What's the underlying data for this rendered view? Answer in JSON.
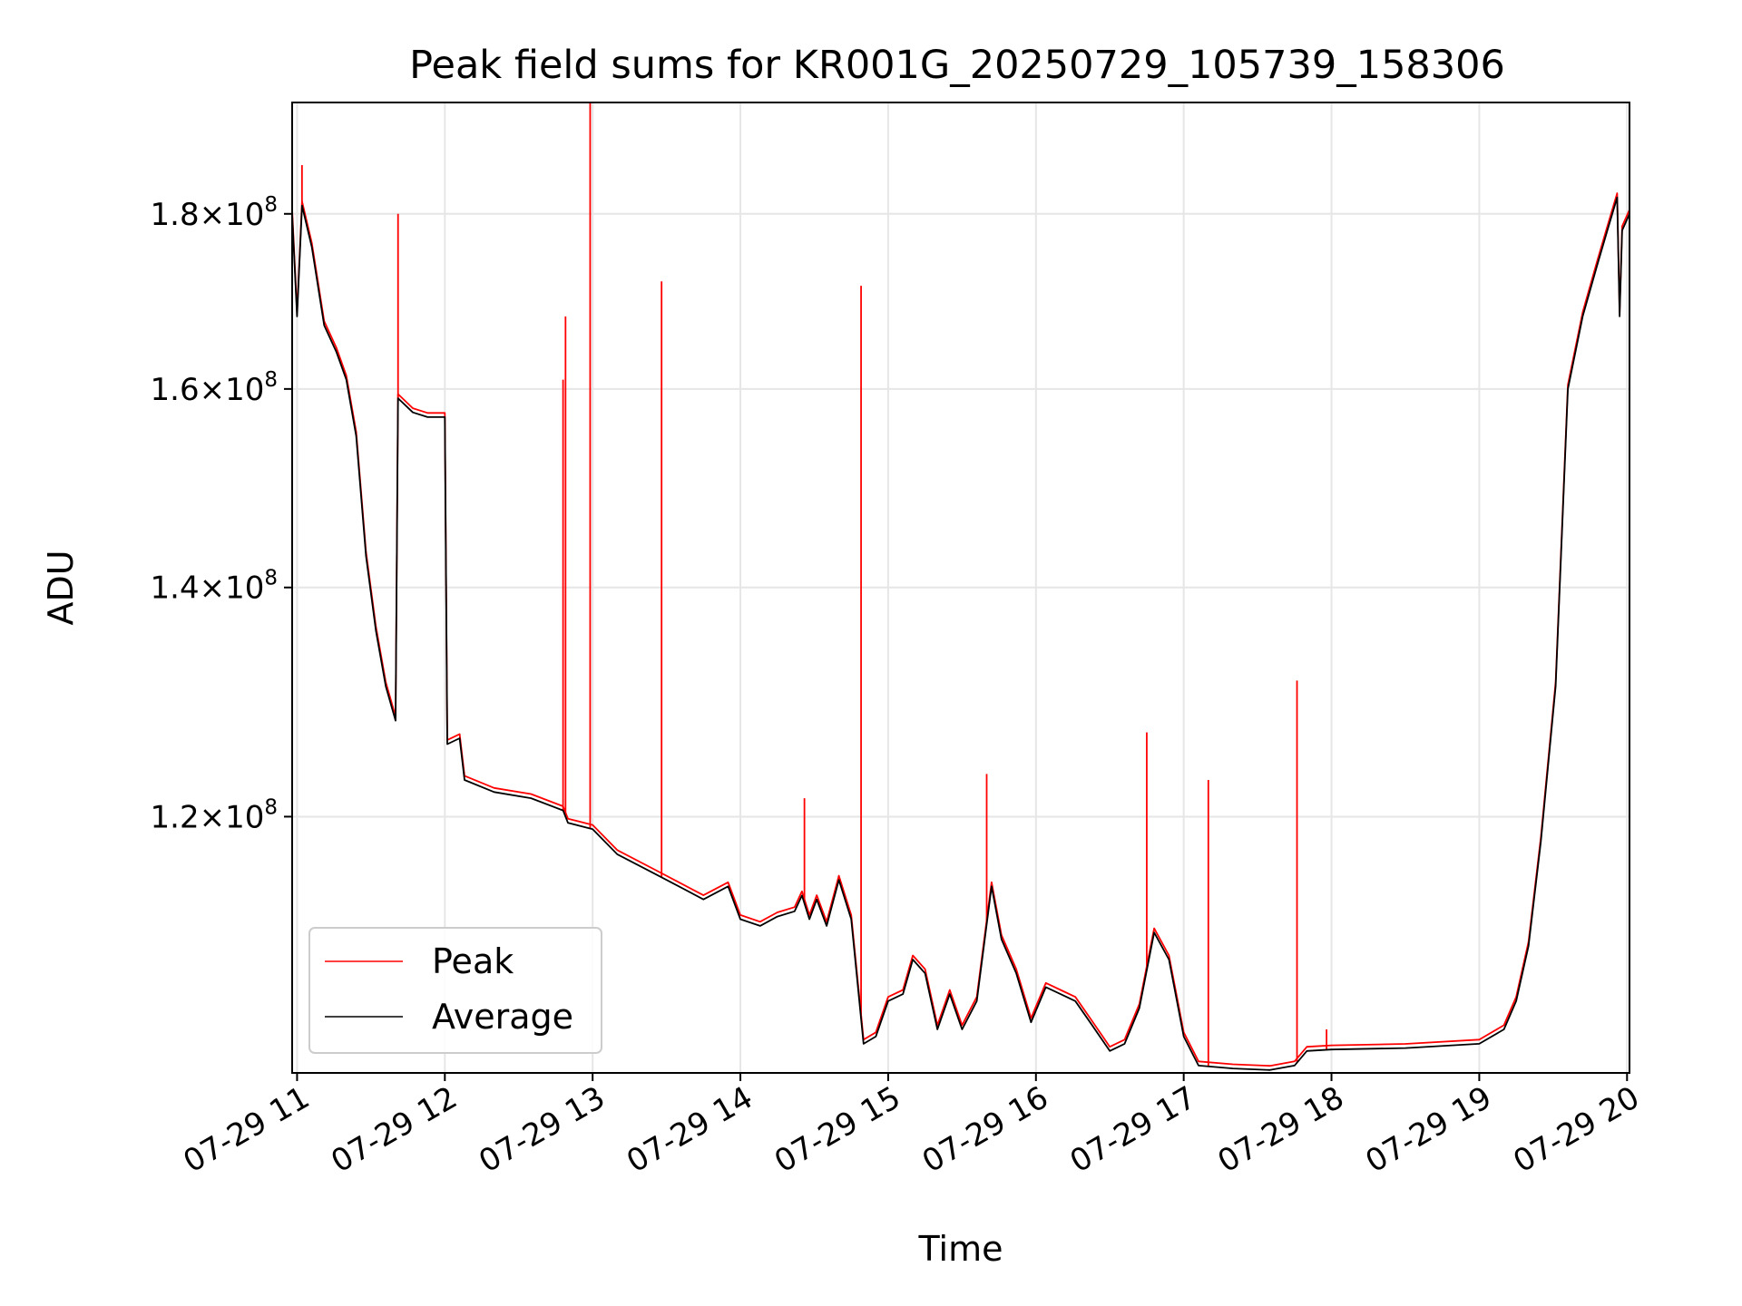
{
  "chart_data": {
    "type": "line",
    "title": "Peak field sums for KR001G_20250729_105739_158306",
    "xlabel": "Time",
    "ylabel": "ADU",
    "x_ticks": [
      "07-29 11",
      "07-29 12",
      "07-29 13",
      "07-29 14",
      "07-29 15",
      "07-29 16",
      "07-29 17",
      "07-29 18",
      "07-29 19",
      "07-29 20"
    ],
    "y_ticks": [
      {
        "value": 120000000,
        "mantissa": "1.2",
        "base": "10",
        "exponent": "8"
      },
      {
        "value": 140000000,
        "mantissa": "1.4",
        "base": "10",
        "exponent": "8"
      },
      {
        "value": 160000000,
        "mantissa": "1.6",
        "base": "10",
        "exponent": "8"
      },
      {
        "value": 180000000,
        "mantissa": "1.8",
        "base": "10",
        "exponent": "8"
      }
    ],
    "y_scale": "log",
    "xlim": [
      "2025-07-29 10:58",
      "2025-07-29 20:01"
    ],
    "ylim": [
      101000000,
      194000000
    ],
    "grid": true,
    "legend_position": "lower-left",
    "series": [
      {
        "name": "Average",
        "color": "#000000",
        "points": [
          [
            "2025-07-29 10:58",
            180000000
          ],
          [
            "2025-07-29 11:00",
            168000000
          ],
          [
            "2025-07-29 11:02",
            181000000
          ],
          [
            "2025-07-29 11:06",
            176000000
          ],
          [
            "2025-07-29 11:11",
            167000000
          ],
          [
            "2025-07-29 11:16",
            164000000
          ],
          [
            "2025-07-29 11:20",
            161000000
          ],
          [
            "2025-07-29 11:24",
            155000000
          ],
          [
            "2025-07-29 11:28",
            143000000
          ],
          [
            "2025-07-29 11:32",
            136000000
          ],
          [
            "2025-07-29 11:36",
            131000000
          ],
          [
            "2025-07-29 11:40",
            128000000
          ],
          [
            "2025-07-29 11:41",
            159000000
          ],
          [
            "2025-07-29 11:47",
            157500000
          ],
          [
            "2025-07-29 11:53",
            157000000
          ],
          [
            "2025-07-29 12:00",
            157000000
          ],
          [
            "2025-07-29 12:01",
            126000000
          ],
          [
            "2025-07-29 12:06",
            126500000
          ],
          [
            "2025-07-29 12:08",
            123000000
          ],
          [
            "2025-07-29 12:20",
            122000000
          ],
          [
            "2025-07-29 12:35",
            121500000
          ],
          [
            "2025-07-29 12:48",
            120500000
          ],
          [
            "2025-07-29 12:50",
            119500000
          ],
          [
            "2025-07-29 13:00",
            119000000
          ],
          [
            "2025-07-29 13:10",
            117000000
          ],
          [
            "2025-07-29 13:25",
            115500000
          ],
          [
            "2025-07-29 13:35",
            114500000
          ],
          [
            "2025-07-29 13:45",
            113500000
          ],
          [
            "2025-07-29 13:55",
            114500000
          ],
          [
            "2025-07-29 14:00",
            112000000
          ],
          [
            "2025-07-29 14:08",
            111500000
          ],
          [
            "2025-07-29 14:15",
            112200000
          ],
          [
            "2025-07-29 14:22",
            112600000
          ],
          [
            "2025-07-29 14:25",
            113800000
          ],
          [
            "2025-07-29 14:28",
            112000000
          ],
          [
            "2025-07-29 14:31",
            113500000
          ],
          [
            "2025-07-29 14:35",
            111500000
          ],
          [
            "2025-07-29 14:40",
            115000000
          ],
          [
            "2025-07-29 14:45",
            112000000
          ],
          [
            "2025-07-29 14:50",
            103000000
          ],
          [
            "2025-07-29 14:55",
            103500000
          ],
          [
            "2025-07-29 15:00",
            106000000
          ],
          [
            "2025-07-29 15:06",
            106500000
          ],
          [
            "2025-07-29 15:10",
            109000000
          ],
          [
            "2025-07-29 15:15",
            108000000
          ],
          [
            "2025-07-29 15:20",
            104000000
          ],
          [
            "2025-07-29 15:25",
            106500000
          ],
          [
            "2025-07-29 15:30",
            104000000
          ],
          [
            "2025-07-29 15:36",
            106000000
          ],
          [
            "2025-07-29 15:42",
            114500000
          ],
          [
            "2025-07-29 15:46",
            110500000
          ],
          [
            "2025-07-29 15:52",
            108000000
          ],
          [
            "2025-07-29 15:58",
            104500000
          ],
          [
            "2025-07-29 16:04",
            107000000
          ],
          [
            "2025-07-29 16:10",
            106500000
          ],
          [
            "2025-07-29 16:16",
            106000000
          ],
          [
            "2025-07-29 16:22",
            104500000
          ],
          [
            "2025-07-29 16:30",
            102500000
          ],
          [
            "2025-07-29 16:36",
            103000000
          ],
          [
            "2025-07-29 16:42",
            105500000
          ],
          [
            "2025-07-29 16:48",
            111000000
          ],
          [
            "2025-07-29 16:54",
            109000000
          ],
          [
            "2025-07-29 17:00",
            103500000
          ],
          [
            "2025-07-29 17:06",
            101500000
          ],
          [
            "2025-07-29 17:20",
            101300000
          ],
          [
            "2025-07-29 17:35",
            101200000
          ],
          [
            "2025-07-29 17:45",
            101500000
          ],
          [
            "2025-07-29 17:50",
            102500000
          ],
          [
            "2025-07-29 18:00",
            102600000
          ],
          [
            "2025-07-29 18:30",
            102700000
          ],
          [
            "2025-07-29 19:00",
            103000000
          ],
          [
            "2025-07-29 19:10",
            104000000
          ],
          [
            "2025-07-29 19:15",
            106000000
          ],
          [
            "2025-07-29 19:20",
            110000000
          ],
          [
            "2025-07-29 19:25",
            118000000
          ],
          [
            "2025-07-29 19:31",
            131000000
          ],
          [
            "2025-07-29 19:36",
            160000000
          ],
          [
            "2025-07-29 19:42",
            168000000
          ],
          [
            "2025-07-29 19:48",
            174000000
          ],
          [
            "2025-07-29 19:52",
            178000000
          ],
          [
            "2025-07-29 19:56",
            182000000
          ],
          [
            "2025-07-29 19:57",
            168000000
          ],
          [
            "2025-07-29 19:58",
            178000000
          ],
          [
            "2025-07-29 20:01",
            180000000
          ]
        ]
      },
      {
        "name": "Peak",
        "color": "#ff0000",
        "spikes": [
          [
            "2025-07-29 11:02",
            186000000
          ],
          [
            "2025-07-29 11:41",
            180000000
          ],
          [
            "2025-07-29 12:48",
            161000000
          ],
          [
            "2025-07-29 12:49",
            168000000
          ],
          [
            "2025-07-29 12:59",
            194000000
          ],
          [
            "2025-07-29 13:28",
            172000000
          ],
          [
            "2025-07-29 14:26",
            121500000
          ],
          [
            "2025-07-29 14:49",
            171500000
          ],
          [
            "2025-07-29 15:40",
            123500000
          ],
          [
            "2025-07-29 16:45",
            127000000
          ],
          [
            "2025-07-29 17:10",
            123000000
          ],
          [
            "2025-07-29 17:46",
            131500000
          ],
          [
            "2025-07-29 17:58",
            104000000
          ]
        ]
      }
    ]
  }
}
